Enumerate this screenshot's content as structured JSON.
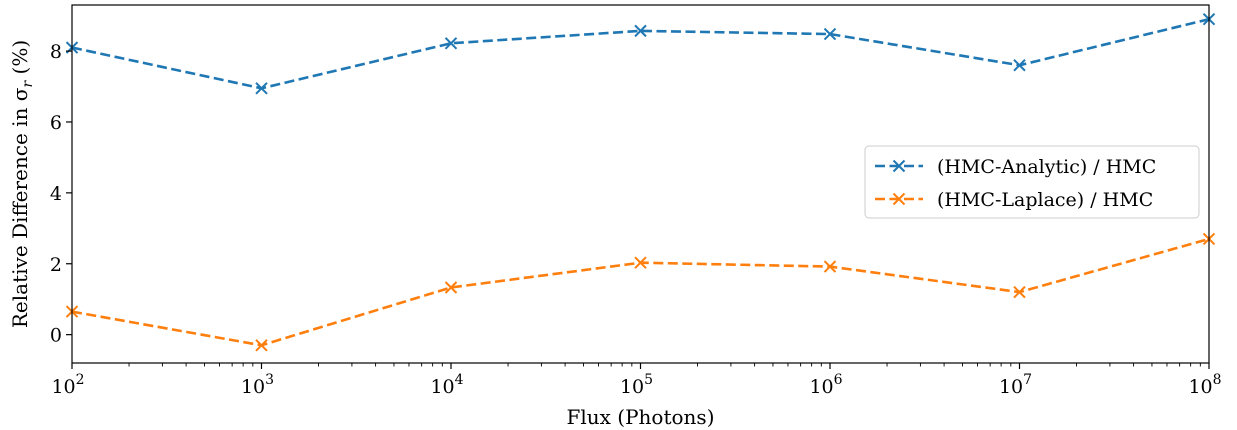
{
  "chart_data": {
    "type": "line",
    "title": "",
    "xlabel": "Flux (Photons)",
    "ylabel": "Relative Difference in σ",
    "ylabel_subscript": "r",
    "ylabel_suffix": " (%)",
    "xscale": "log",
    "x": [
      100,
      1000,
      10000,
      100000,
      1000000,
      10000000,
      100000000
    ],
    "xlim": [
      100,
      100000000
    ],
    "ylim": [
      -0.8,
      9.3
    ],
    "xticks": [
      {
        "base": "10",
        "exp": "2"
      },
      {
        "base": "10",
        "exp": "3"
      },
      {
        "base": "10",
        "exp": "4"
      },
      {
        "base": "10",
        "exp": "5"
      },
      {
        "base": "10",
        "exp": "6"
      },
      {
        "base": "10",
        "exp": "7"
      },
      {
        "base": "10",
        "exp": "8"
      }
    ],
    "yticks": [
      "0",
      "2",
      "4",
      "6",
      "8"
    ],
    "grid": false,
    "legend_position": "center-right",
    "series": [
      {
        "name": "(HMC-Analytic) / HMC",
        "color": "#1f77b4",
        "marker": "x",
        "linestyle": "dashed",
        "values": [
          8.1,
          6.95,
          8.22,
          8.57,
          8.48,
          7.6,
          8.9
        ]
      },
      {
        "name": "(HMC-Laplace) / HMC",
        "color": "#ff7f0e",
        "marker": "x",
        "linestyle": "dashed",
        "values": [
          0.65,
          -0.3,
          1.33,
          2.03,
          1.92,
          1.2,
          2.7
        ]
      }
    ]
  }
}
